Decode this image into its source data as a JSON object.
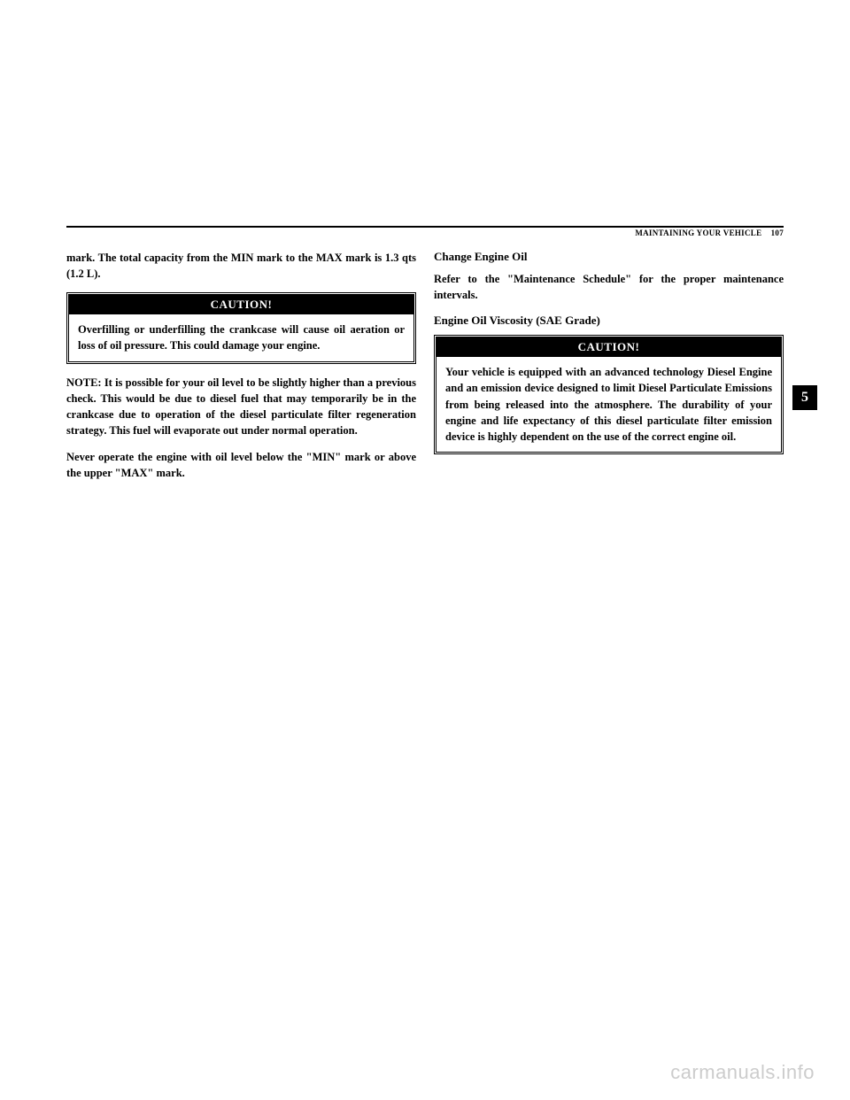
{
  "header": {
    "section_label": "MAINTAINING YOUR VEHICLE",
    "page_number": "107"
  },
  "left_column": {
    "intro_para": "mark. The total capacity from the MIN mark to the MAX mark is 1.3 qts (1.2 L).",
    "caution1": {
      "label": "CAUTION!",
      "body": "Overfilling or underfilling the crankcase will cause oil aeration or loss of oil pressure. This could damage your engine."
    },
    "note_para": "NOTE: It is possible for your oil level to be slightly higher than a previous check. This would be due to diesel fuel that may temporarily be in the crankcase due to operation of the diesel particulate filter regeneration strategy. This fuel will evaporate out under normal operation.",
    "never_para": "Never operate the engine with oil level below the \"MIN\" mark or above the upper \"MAX\" mark."
  },
  "right_column": {
    "heading1": "Change Engine Oil",
    "para1": "Refer to the \"Maintenance Schedule\" for the proper maintenance intervals.",
    "heading2": "Engine Oil Viscosity (SAE Grade)",
    "caution2": {
      "label": "CAUTION!",
      "body": "Your vehicle is equipped with an advanced technology Diesel Engine and an emission device designed to limit Diesel Particulate Emissions from being released into the atmosphere. The durability of your engine and life expectancy of this diesel particulate filter emission device is highly dependent on the use of the correct engine oil."
    }
  },
  "section_tab": "5",
  "watermark": "carmanuals.info"
}
